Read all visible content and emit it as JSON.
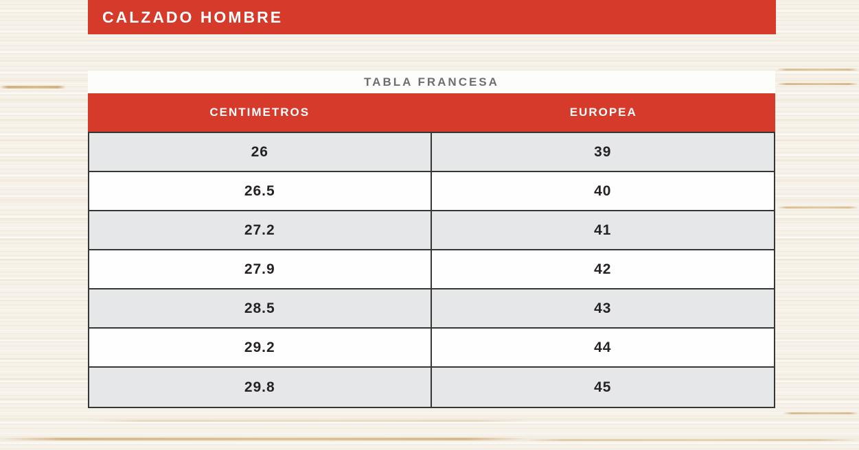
{
  "header": {
    "title": "CALZADO HOMBRE"
  },
  "table": {
    "title": "TABLA FRANCESA",
    "columns": [
      "CENTIMETROS",
      "EUROPEA"
    ],
    "rows": [
      [
        "26",
        "39"
      ],
      [
        "26.5",
        "40"
      ],
      [
        "27.2",
        "41"
      ],
      [
        "27.9",
        "42"
      ],
      [
        "28.5",
        "43"
      ],
      [
        "29.2",
        "44"
      ],
      [
        "29.8",
        "45"
      ]
    ]
  },
  "colors": {
    "accent_red": "#d53a2b",
    "row_alt_gray": "#e6e7e8",
    "table_border": "#363634",
    "subtitle_gray": "#6d6e70",
    "text_dark": "#262223",
    "wood_base": "#f6f2e9"
  },
  "chart_data": {
    "type": "table",
    "title": "TABLA FRANCESA",
    "subtitle": "CALZADO HOMBRE",
    "columns": [
      "CENTIMETROS",
      "EUROPEA"
    ],
    "rows": [
      [
        26,
        39
      ],
      [
        26.5,
        40
      ],
      [
        27.2,
        41
      ],
      [
        27.9,
        42
      ],
      [
        28.5,
        43
      ],
      [
        29.2,
        44
      ],
      [
        29.8,
        45
      ]
    ]
  }
}
